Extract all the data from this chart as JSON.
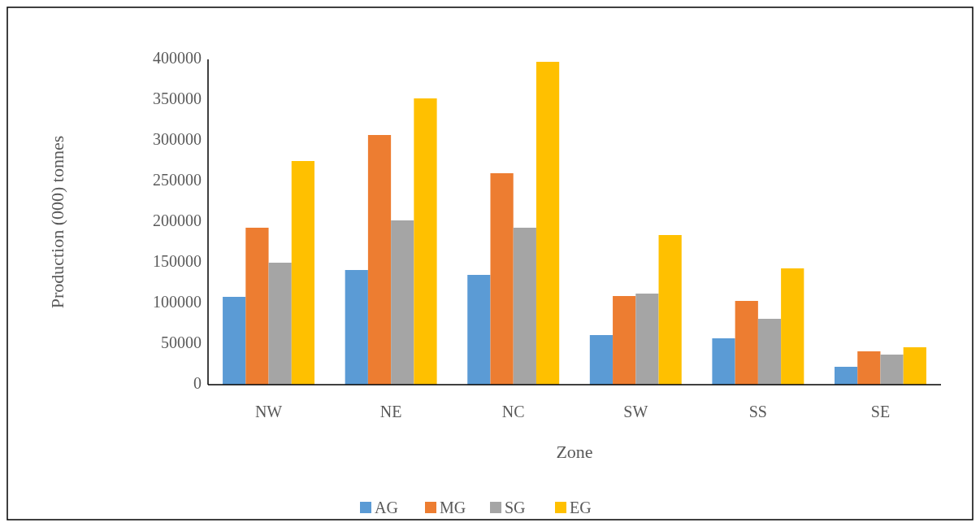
{
  "chart_data": {
    "type": "bar",
    "xlabel": "Zone",
    "ylabel": "Production (000) tonnes",
    "categories": [
      "NW",
      "NE",
      "NC",
      "SW",
      "SS",
      "SE"
    ],
    "series": [
      {
        "name": "AG",
        "color": "#5b9bd5",
        "values": [
          108000,
          141000,
          135000,
          61000,
          57000,
          22000
        ]
      },
      {
        "name": "MG",
        "color": "#ed7d31",
        "values": [
          193000,
          307000,
          260000,
          109000,
          103000,
          41000
        ]
      },
      {
        "name": "SG",
        "color": "#a5a5a5",
        "values": [
          150000,
          202000,
          193000,
          112000,
          81000,
          37000
        ]
      },
      {
        "name": "EG",
        "color": "#ffc000",
        "values": [
          275000,
          352000,
          397000,
          184000,
          143000,
          46000
        ]
      }
    ],
    "ylim": [
      0,
      400000
    ],
    "yticks": [
      0,
      50000,
      100000,
      150000,
      200000,
      250000,
      300000,
      350000,
      400000
    ],
    "grid": false,
    "legend": "bottom"
  }
}
